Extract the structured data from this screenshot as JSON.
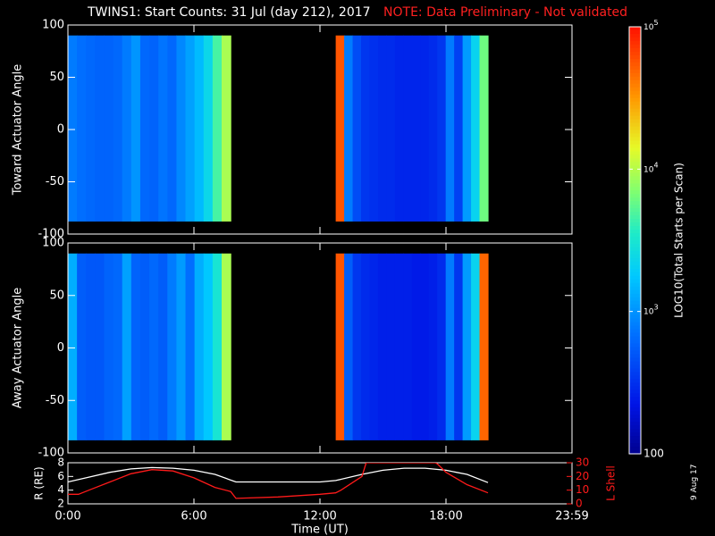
{
  "title": {
    "main": "TWINS1: Start Counts: 31 Jul (day 212), 2017",
    "note": "NOTE: Data Preliminary - Not validated"
  },
  "side_date": "9 Aug 17",
  "colors": {
    "background": "#000000",
    "foreground": "#ffffff",
    "note": "#ff2020",
    "orbit_r": "#ffffff",
    "orbit_lshell": "#ff1a1a"
  },
  "colorbar": {
    "label": "LOG10(Total Starts per Scan)",
    "ticks": [
      "100",
      "10^3",
      "10^4",
      "10^5"
    ],
    "scale": "log",
    "range": [
      100,
      100000
    ]
  },
  "chart_data": [
    {
      "type": "heatmap",
      "panel": "toward",
      "ylabel": "Toward Actuator Angle",
      "ylim": [
        -100,
        100
      ],
      "yticks": [
        "100",
        "50",
        "0",
        "-50",
        "-100"
      ],
      "xlim": [
        0,
        24
      ],
      "angle_range": [
        -88,
        90
      ],
      "data_segments": [
        [
          0.0,
          7.75
        ],
        [
          12.75,
          20.0
        ]
      ],
      "segments": [
        {
          "t_start": 0.0,
          "t_end": 7.75,
          "level": 0.27,
          "profile": [
            0.3,
            0.28,
            0.27,
            0.26,
            0.26,
            0.27,
            0.3,
            0.34,
            0.27,
            0.26,
            0.29,
            0.27,
            0.32,
            0.36,
            0.4,
            0.46,
            0.56,
            0.66
          ]
        },
        {
          "t_start": 12.75,
          "t_end": 20.0,
          "level": 0.17,
          "profile": [
            0.92,
            0.3,
            0.22,
            0.18,
            0.17,
            0.16,
            0.16,
            0.15,
            0.15,
            0.15,
            0.15,
            0.16,
            0.18,
            0.3,
            0.2,
            0.35,
            0.45,
            0.6
          ]
        }
      ]
    },
    {
      "type": "heatmap",
      "panel": "away",
      "ylabel": "Away Actuator Angle",
      "ylim": [
        -100,
        100
      ],
      "yticks": [
        "100",
        "50",
        "0",
        "-50",
        "-100"
      ],
      "xlim": [
        0,
        24
      ],
      "angle_range": [
        -88,
        90
      ],
      "data_segments": [
        [
          0.0,
          7.75
        ],
        [
          12.75,
          20.0
        ]
      ],
      "segments": [
        {
          "t_start": 0.0,
          "t_end": 7.75,
          "level": 0.25,
          "profile": [
            0.38,
            0.25,
            0.24,
            0.24,
            0.26,
            0.27,
            0.36,
            0.26,
            0.25,
            0.27,
            0.25,
            0.3,
            0.35,
            0.28,
            0.38,
            0.42,
            0.5,
            0.66
          ]
        },
        {
          "t_start": 12.75,
          "t_end": 20.0,
          "level": 0.15,
          "profile": [
            0.92,
            0.25,
            0.18,
            0.16,
            0.15,
            0.14,
            0.14,
            0.14,
            0.14,
            0.13,
            0.13,
            0.14,
            0.16,
            0.3,
            0.18,
            0.35,
            0.45,
            0.9
          ]
        }
      ]
    },
    {
      "type": "line",
      "panel": "orbit",
      "xlabel": "Time (UT)",
      "xlim": [
        0,
        24
      ],
      "xticks": [
        "0:00",
        "6:00",
        "12:00",
        "18:00",
        "23:59"
      ],
      "y_left": {
        "label": "R (RE)",
        "ticks": [
          "2",
          "4",
          "6",
          "8"
        ],
        "lim": [
          2,
          8
        ]
      },
      "y_right": {
        "label": "L Shell",
        "ticks": [
          "0",
          "10",
          "20",
          "30"
        ],
        "lim": [
          0,
          30
        ]
      },
      "series": [
        {
          "axis": "left",
          "x": [
            0,
            1,
            2,
            3,
            4,
            5,
            6,
            7,
            8,
            9,
            10,
            11,
            12,
            12.75,
            14,
            15,
            16,
            17,
            18,
            19,
            20
          ],
          "values": [
            5.2,
            5.9,
            6.6,
            7.1,
            7.3,
            7.2,
            6.9,
            6.3,
            5.2,
            5.2,
            5.2,
            5.2,
            5.2,
            5.4,
            6.3,
            6.9,
            7.2,
            7.2,
            6.9,
            6.3,
            5.1
          ]
        },
        {
          "axis": "right",
          "x": [
            0,
            0.5,
            1,
            2,
            3,
            4,
            5,
            6,
            7,
            7.75,
            8,
            10,
            12,
            12.75,
            13,
            14,
            14.2,
            17.5,
            17.6,
            18,
            19,
            20
          ],
          "values": [
            7,
            7,
            10,
            16,
            22,
            25,
            24,
            19,
            12,
            9,
            4,
            5,
            7,
            8,
            10,
            20,
            30,
            30,
            29,
            23,
            14,
            8
          ]
        }
      ]
    }
  ]
}
